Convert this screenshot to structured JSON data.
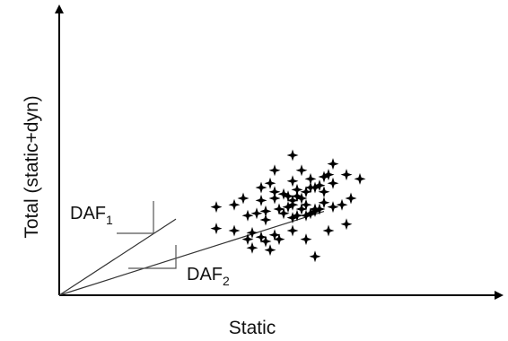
{
  "chart_data": {
    "type": "scatter",
    "xlabel": "Static",
    "ylabel": "Total (static+dyn)",
    "xlim": [
      0,
      100
    ],
    "ylim": [
      0,
      100
    ],
    "grid": false,
    "points": {
      "marker": "plus-star",
      "x": [
        52,
        61,
        54,
        58,
        48,
        64,
        56,
        47,
        52,
        59,
        60,
        45,
        48,
        51,
        54,
        55,
        56,
        57,
        41,
        45,
        48,
        50,
        52,
        53,
        55,
        57,
        59,
        51,
        52,
        54,
        56,
        58,
        61,
        63,
        35,
        39,
        42,
        44,
        46,
        49,
        53,
        57,
        46,
        50,
        52,
        55,
        35,
        39,
        43,
        48,
        52,
        42,
        45,
        46,
        49,
        55,
        60,
        64,
        43,
        47,
        57,
        61,
        53,
        65,
        67,
        59
      ],
      "y": [
        65,
        61,
        58,
        51,
        58,
        56,
        54,
        52,
        53,
        55,
        56,
        50,
        48,
        46,
        45,
        48,
        50,
        50,
        45,
        44,
        45,
        47,
        44,
        46,
        42,
        40,
        43,
        41,
        42,
        40,
        38,
        40,
        41,
        42,
        41,
        42,
        37,
        38,
        39,
        40,
        37,
        39,
        35,
        38,
        36,
        37,
        31,
        30,
        29,
        28,
        30,
        26,
        27,
        25,
        26,
        26,
        30,
        33,
        22,
        21,
        18,
        52,
        49,
        45,
        54,
        48
      ]
    },
    "lines": [
      {
        "name": "DAF1",
        "slope": 1.36
      },
      {
        "name": "DAF2",
        "slope": 0.66
      }
    ],
    "annotations": {
      "daf1_main": "DAF",
      "daf1_sub": "1",
      "daf2_main": "DAF",
      "daf2_sub": "2"
    }
  }
}
